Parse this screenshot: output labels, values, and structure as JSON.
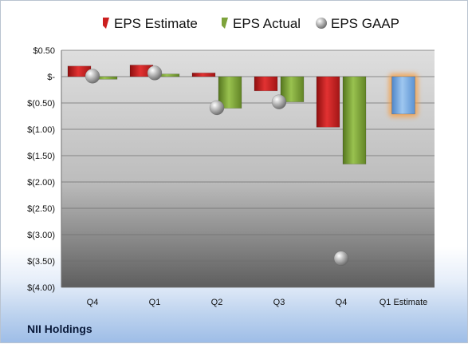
{
  "company": "NII Holdings",
  "chart_data": {
    "type": "bar",
    "categories": [
      "Q4",
      "Q1",
      "Q2",
      "Q3",
      "Q4",
      "Q1 Estimate"
    ],
    "series": [
      {
        "name": "EPS Estimate",
        "color": "#cc1f1f",
        "values": [
          0.2,
          0.22,
          0.07,
          -0.27,
          -0.96,
          null
        ]
      },
      {
        "name": "EPS Actual",
        "color": "#7da33b",
        "values": [
          -0.05,
          0.05,
          -0.6,
          -0.48,
          -1.66,
          -0.71
        ]
      },
      {
        "name": "EPS GAAP",
        "color": "#a8a8a8",
        "marker": "sphere",
        "values": [
          0.01,
          0.07,
          -0.59,
          -0.48,
          -3.45,
          null
        ]
      }
    ],
    "estimate_highlight": {
      "category": "Q1 Estimate",
      "value": -0.71,
      "color": "#7fb0e6",
      "glow": "#f5a04a"
    },
    "ylim": [
      -4.0,
      0.5
    ],
    "yticks": [
      0.5,
      0,
      -0.5,
      -1.0,
      -1.5,
      -2.0,
      -2.5,
      -3.0,
      -3.5,
      -4.0
    ],
    "ytick_labels": [
      "$0.50",
      "$-",
      "$(0.50)",
      "$(1.00)",
      "$(1.50)",
      "$(2.00)",
      "$(2.50)",
      "$(3.00)",
      "$(3.50)",
      "$(4.00)"
    ],
    "grid": true,
    "legend_position": "top"
  }
}
